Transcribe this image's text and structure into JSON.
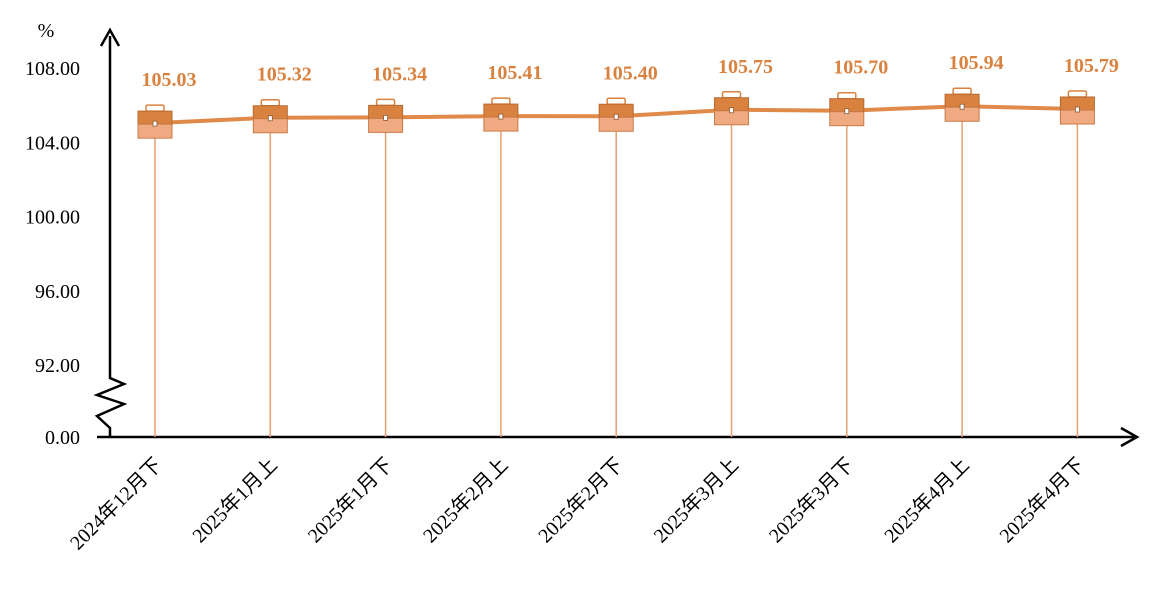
{
  "chart_data": {
    "type": "line",
    "unit": "%",
    "categories": [
      "2024年12月下",
      "2025年1月上",
      "2025年1月下",
      "2025年2月上",
      "2025年2月下",
      "2025年3月上",
      "2025年3月下",
      "2025年4月上",
      "2025年4月下"
    ],
    "series": [
      {
        "values": [
          105.03,
          105.32,
          105.34,
          105.41,
          105.4,
          105.75,
          105.7,
          105.94,
          105.79
        ]
      }
    ],
    "value_labels": [
      "105.03",
      "105.32",
      "105.34",
      "105.41",
      "105.40",
      "105.75",
      "105.70",
      "105.94",
      "105.79"
    ],
    "y_ticks": [
      {
        "value": 0,
        "label": "0.00"
      },
      {
        "value": 92,
        "label": "92.00"
      },
      {
        "value": 96,
        "label": "96.00"
      },
      {
        "value": 100,
        "label": "100.00"
      },
      {
        "value": 104,
        "label": "104.00"
      },
      {
        "value": 108,
        "label": "108.00"
      }
    ],
    "ylim": [
      92,
      108
    ],
    "axis_break": true,
    "grid": false,
    "legend": "none",
    "marker": "briefcase-icon",
    "colors": {
      "line": "#E08A4A",
      "label": "#D9823F",
      "marker": "#D9823F",
      "marker_light": "#F0AA82",
      "drop_line": "#E8A070",
      "axis": "#000000"
    }
  }
}
